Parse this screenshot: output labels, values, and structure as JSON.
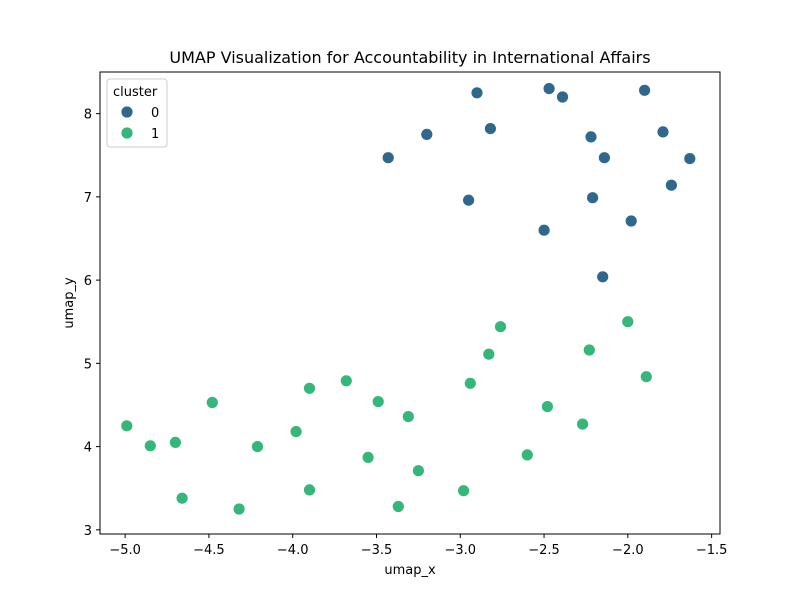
{
  "chart_data": {
    "type": "scatter",
    "title": "UMAP Visualization for Accountability in International Affairs",
    "xlabel": "umap_x",
    "ylabel": "umap_y",
    "xlim": [
      -5.15,
      -1.45
    ],
    "ylim": [
      2.95,
      8.5
    ],
    "xticks": [
      -5.0,
      -4.5,
      -4.0,
      -3.5,
      -3.0,
      -2.5,
      -2.0,
      -1.5
    ],
    "xtick_labels": [
      "−5.0",
      "−4.5",
      "−4.0",
      "−3.5",
      "−3.0",
      "−2.5",
      "−2.0",
      "−1.5"
    ],
    "yticks": [
      3,
      4,
      5,
      6,
      7,
      8
    ],
    "ytick_labels": [
      "3",
      "4",
      "5",
      "6",
      "7",
      "8"
    ],
    "grid": false,
    "legend": {
      "title": "cluster",
      "placement": "top-left"
    },
    "series": [
      {
        "name": "0",
        "color": "#30678d",
        "points": [
          [
            -2.9,
            8.25
          ],
          [
            -2.47,
            8.3
          ],
          [
            -2.39,
            8.2
          ],
          [
            -1.9,
            8.28
          ],
          [
            -3.2,
            7.75
          ],
          [
            -2.82,
            7.82
          ],
          [
            -2.22,
            7.72
          ],
          [
            -1.79,
            7.78
          ],
          [
            -3.43,
            7.47
          ],
          [
            -2.14,
            7.47
          ],
          [
            -1.63,
            7.46
          ],
          [
            -1.74,
            7.14
          ],
          [
            -2.95,
            6.96
          ],
          [
            -2.21,
            6.99
          ],
          [
            -1.98,
            6.71
          ],
          [
            -2.5,
            6.6
          ],
          [
            -2.15,
            6.04
          ]
        ]
      },
      {
        "name": "1",
        "color": "#35b779",
        "points": [
          [
            -4.99,
            4.25
          ],
          [
            -4.85,
            4.01
          ],
          [
            -4.7,
            4.05
          ],
          [
            -4.48,
            4.53
          ],
          [
            -4.66,
            3.38
          ],
          [
            -4.32,
            3.25
          ],
          [
            -4.21,
            4.0
          ],
          [
            -3.98,
            4.18
          ],
          [
            -3.9,
            4.7
          ],
          [
            -3.9,
            3.48
          ],
          [
            -3.68,
            4.79
          ],
          [
            -3.55,
            3.87
          ],
          [
            -3.49,
            4.54
          ],
          [
            -3.31,
            4.36
          ],
          [
            -3.37,
            3.28
          ],
          [
            -3.25,
            3.71
          ],
          [
            -2.98,
            3.47
          ],
          [
            -2.94,
            4.76
          ],
          [
            -2.83,
            5.11
          ],
          [
            -2.76,
            5.44
          ],
          [
            -2.6,
            3.9
          ],
          [
            -2.48,
            4.48
          ],
          [
            -2.27,
            4.27
          ],
          [
            -2.23,
            5.16
          ],
          [
            -2.0,
            5.5
          ],
          [
            -1.89,
            4.84
          ]
        ]
      }
    ]
  }
}
